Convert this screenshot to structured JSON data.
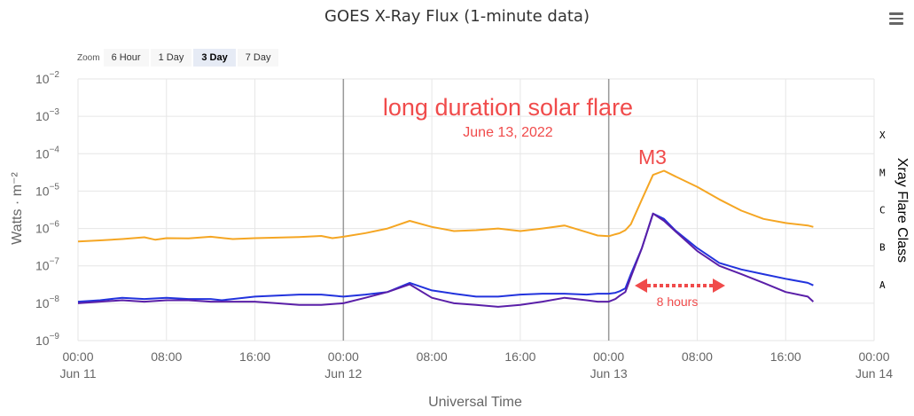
{
  "title": "GOES X-Ray Flux (1-minute data)",
  "menu_icon": "hamburger-menu-icon",
  "zoom": {
    "label": "Zoom",
    "buttons": [
      "6 Hour",
      "1 Day",
      "3 Day",
      "7 Day"
    ],
    "selected": "3 Day"
  },
  "annotations": {
    "headline": "long duration solar flare",
    "date": "June 13, 2022",
    "peak": "M3",
    "duration": "8 hours"
  },
  "colors": {
    "long_channel": "#f5a623",
    "short_channel": "#5a1fa8",
    "secondary_short": "#2233dd",
    "annotation": "#f04b4b",
    "grid": "#e6e6e6",
    "day_divider": "#999999"
  },
  "chart_data": {
    "type": "line",
    "title": "GOES X-Ray Flux (1-minute data)",
    "xlabel": "Universal Time",
    "ylabel": "Watts · m⁻²",
    "y2label": "Xray Flare Class",
    "yscale": "log",
    "ylim": [
      1e-09,
      0.01
    ],
    "ytick_exponents": [
      -2,
      -3,
      -4,
      -5,
      -6,
      -7,
      -8,
      -9
    ],
    "xlim_hours": [
      0,
      72
    ],
    "x_tick_labels": [
      {
        "time": "00:00",
        "date": "Jun 11"
      },
      {
        "time": "08:00",
        "date": ""
      },
      {
        "time": "16:00",
        "date": ""
      },
      {
        "time": "00:00",
        "date": "Jun 12"
      },
      {
        "time": "08:00",
        "date": ""
      },
      {
        "time": "16:00",
        "date": ""
      },
      {
        "time": "00:00",
        "date": "Jun 13"
      },
      {
        "time": "08:00",
        "date": ""
      },
      {
        "time": "16:00",
        "date": ""
      },
      {
        "time": "00:00",
        "date": "Jun 14"
      }
    ],
    "flare_classes": [
      "X",
      "M",
      "C",
      "B",
      "A"
    ],
    "series": [
      {
        "x_hours": [
          0,
          2,
          4,
          6,
          7,
          8,
          10,
          12,
          14,
          16,
          18,
          20,
          22,
          23,
          24,
          26,
          28,
          30,
          32,
          34,
          36,
          38,
          40,
          42,
          44,
          46,
          47,
          48,
          48.6,
          49,
          49.5,
          50,
          51,
          52,
          53,
          54,
          56,
          58,
          60,
          62,
          64,
          66,
          66.5
        ],
        "y": [
          4.5e-07,
          4.8e-07,
          5.2e-07,
          5.8e-07,
          5e-07,
          5.5e-07,
          5.4e-07,
          6e-07,
          5.2e-07,
          5.5e-07,
          5.7e-07,
          5.9e-07,
          6.3e-07,
          5.5e-07,
          6e-07,
          7.5e-07,
          1e-06,
          1.6e-06,
          1.1e-06,
          8.5e-07,
          9e-07,
          1e-06,
          8.5e-07,
          1e-06,
          1.2e-06,
          8e-07,
          6.5e-07,
          6.2e-07,
          7e-07,
          7.5e-07,
          9e-07,
          1.3e-06,
          6e-06,
          2.7e-05,
          3.5e-05,
          2.5e-05,
          1.3e-05,
          6e-06,
          3e-06,
          1.8e-06,
          1.4e-06,
          1.2e-06,
          1.1e-06
        ]
      },
      {
        "x_hours": [
          0,
          2,
          4,
          6,
          8,
          10,
          12,
          13,
          14,
          16,
          18,
          20,
          22,
          23,
          24,
          26,
          28,
          30,
          32,
          34,
          36,
          38,
          40,
          42,
          44,
          46,
          47,
          48,
          48.6,
          49,
          49.5,
          50,
          51,
          52,
          53,
          54,
          56,
          58,
          60,
          62,
          64,
          66,
          66.5
        ],
        "y": [
          1.1e-08,
          1.2e-08,
          1.4e-08,
          1.3e-08,
          1.4e-08,
          1.3e-08,
          1.3e-08,
          1.2e-08,
          1.3e-08,
          1.5e-08,
          1.6e-08,
          1.7e-08,
          1.7e-08,
          1.6e-08,
          1.5e-08,
          1.7e-08,
          2e-08,
          3.5e-08,
          2.2e-08,
          1.8e-08,
          1.5e-08,
          1.5e-08,
          1.7e-08,
          1.8e-08,
          1.8e-08,
          1.7e-08,
          1.8e-08,
          1.8e-08,
          1.9e-08,
          2.1e-08,
          2.5e-08,
          6e-08,
          3e-07,
          2.5e-06,
          1.8e-06,
          9e-07,
          3e-07,
          1.2e-07,
          8e-08,
          6e-08,
          4.5e-08,
          3.5e-08,
          3e-08
        ]
      },
      {
        "x_hours": [
          0,
          2,
          4,
          6,
          8,
          10,
          12,
          14,
          16,
          18,
          20,
          22,
          24,
          26,
          28,
          30,
          32,
          34,
          36,
          38,
          40,
          42,
          44,
          46,
          47,
          48,
          48.6,
          49,
          49.5,
          50,
          51,
          52,
          53,
          54,
          56,
          58,
          60,
          62,
          64,
          66,
          66.5
        ],
        "y": [
          1e-08,
          1.1e-08,
          1.2e-08,
          1.1e-08,
          1.2e-08,
          1.2e-08,
          1.1e-08,
          1.1e-08,
          1.1e-08,
          1e-08,
          9e-09,
          9e-09,
          1e-08,
          1.4e-08,
          2e-08,
          3.2e-08,
          1.4e-08,
          1e-08,
          9e-09,
          8e-09,
          9e-09,
          1.1e-08,
          1.4e-08,
          1.2e-08,
          1.1e-08,
          1.1e-08,
          1.3e-08,
          1.6e-08,
          2e-08,
          5e-08,
          3e-07,
          2.5e-06,
          1.6e-06,
          8.5e-07,
          2.5e-07,
          1e-07,
          6e-08,
          3.5e-08,
          2e-08,
          1.5e-08,
          1.1e-08
        ]
      }
    ]
  }
}
